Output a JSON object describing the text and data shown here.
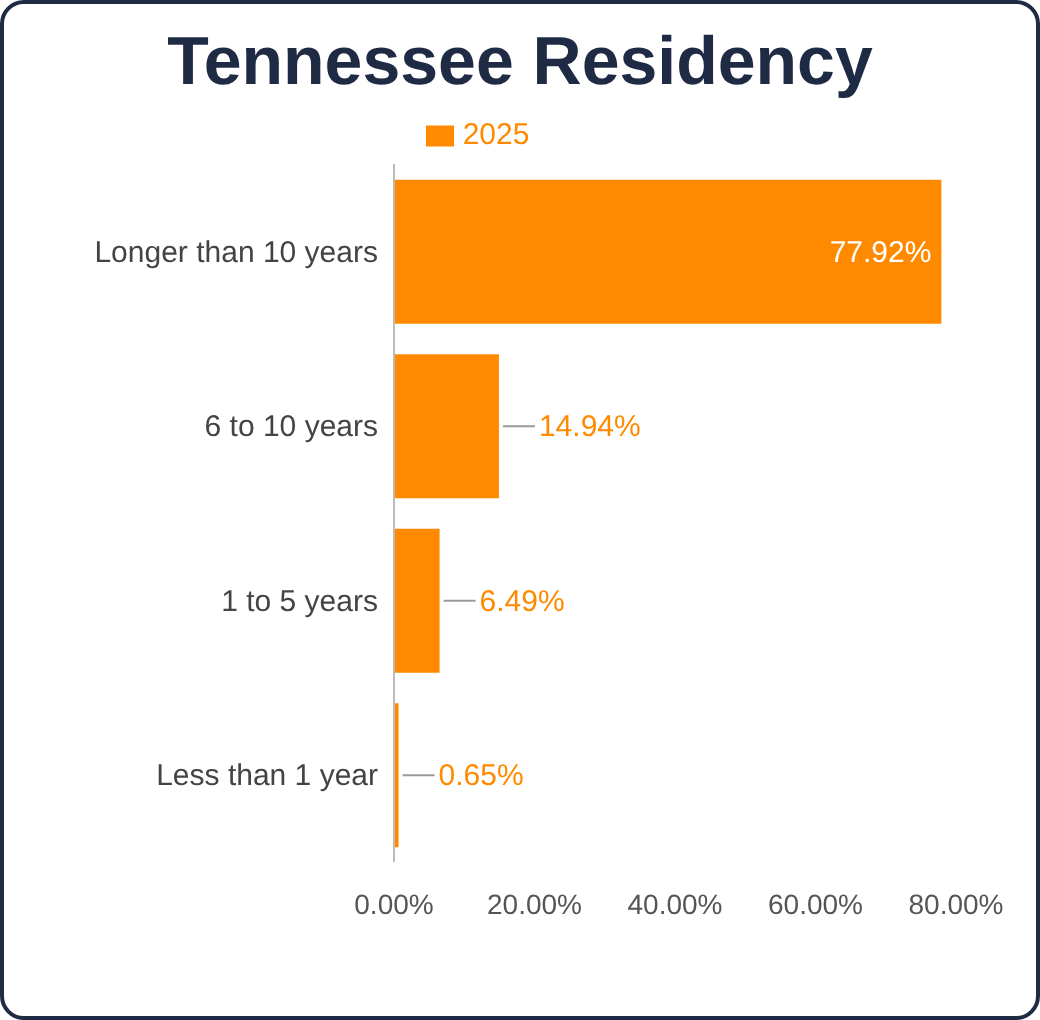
{
  "chart_data": {
    "type": "bar",
    "title": "Tennessee Residency",
    "orientation": "horizontal",
    "categories": [
      "Longer than 10 years",
      "6 to 10 years",
      "1 to 5 years",
      "Less than 1 year"
    ],
    "series": [
      {
        "name": "2025",
        "color": "#ff8a00",
        "values": [
          77.92,
          14.94,
          6.49,
          0.65
        ],
        "value_labels": [
          "77.92%",
          "14.94%",
          "6.49%",
          "0.65%"
        ]
      }
    ],
    "xlim": [
      0,
      80
    ],
    "xticks": [
      {
        "value": 0,
        "label": "0.00%"
      },
      {
        "value": 20,
        "label": "20.00%"
      },
      {
        "value": 40,
        "label": "40.00%"
      },
      {
        "value": 60,
        "label": "60.00%"
      },
      {
        "value": 80,
        "label": "80.00%"
      }
    ],
    "grid": false,
    "legend": "top"
  }
}
